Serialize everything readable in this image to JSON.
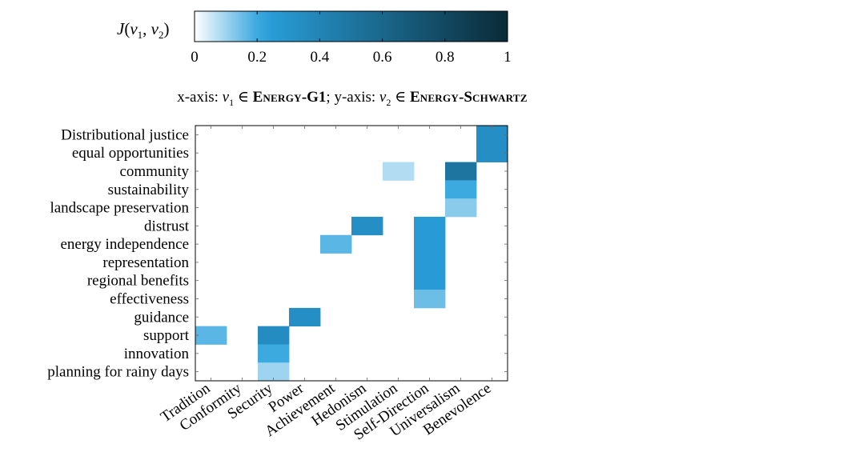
{
  "chart_data": {
    "type": "heatmap",
    "colorbar": {
      "label_symbol": "J",
      "label_args": "(v1, v2)",
      "range": [
        0,
        1
      ],
      "ticks": [
        "0",
        "0.2",
        "0.4",
        "0.6",
        "0.8",
        "1"
      ],
      "tick_values": [
        0,
        0.2,
        0.4,
        0.6,
        0.8,
        1
      ],
      "colors": [
        "#ffffff",
        "#29a0dc",
        "#0a2a36"
      ]
    },
    "subtitle": {
      "x_prefix": "x-axis: ",
      "x_var": "v",
      "x_sub": "1",
      "elem": " ∈ ",
      "x_set_first": "E",
      "x_set_rest": "nergy",
      "x_set_suffix": "-G1",
      "sep": "; y-axis: ",
      "y_var": "v",
      "y_sub": "2",
      "y_set_first": "E",
      "y_set_rest": "nergy",
      "y_set_dash": "-",
      "y_set_first2": "S",
      "y_set_rest2": "chwartz"
    },
    "x_categories": [
      "Tradition",
      "Conformity",
      "Security",
      "Power",
      "Achievement",
      "Hedonism",
      "Stimulation",
      "Self-Direction",
      "Universalism",
      "Benevolence"
    ],
    "y_categories": [
      "Distributional justice",
      "equal opportunities",
      "community",
      "sustainability",
      "landscape preservation",
      "distrust",
      "energy independence",
      "representation",
      "regional benefits",
      "effectiveness",
      "guidance",
      "support",
      "innovation",
      "planning for rainy days"
    ],
    "cells": [
      {
        "x": "Benevolence",
        "y": "Distributional justice",
        "value": 0.33
      },
      {
        "x": "Benevolence",
        "y": "equal opportunities",
        "value": 0.33
      },
      {
        "x": "Stimulation",
        "y": "community",
        "value": 0.08
      },
      {
        "x": "Universalism",
        "y": "community",
        "value": 0.5
      },
      {
        "x": "Universalism",
        "y": "sustainability",
        "value": 0.2
      },
      {
        "x": "Universalism",
        "y": "landscape preservation",
        "value": 0.12
      },
      {
        "x": "Hedonism",
        "y": "distrust",
        "value": 0.33
      },
      {
        "x": "Self-Direction",
        "y": "distrust",
        "value": 0.25
      },
      {
        "x": "Achievement",
        "y": "energy independence",
        "value": 0.17
      },
      {
        "x": "Self-Direction",
        "y": "energy independence",
        "value": 0.25
      },
      {
        "x": "Self-Direction",
        "y": "representation",
        "value": 0.25
      },
      {
        "x": "Self-Direction",
        "y": "regional benefits",
        "value": 0.25
      },
      {
        "x": "Self-Direction",
        "y": "effectiveness",
        "value": 0.15
      },
      {
        "x": "Power",
        "y": "guidance",
        "value": 0.33
      },
      {
        "x": "Tradition",
        "y": "support",
        "value": 0.17
      },
      {
        "x": "Security",
        "y": "support",
        "value": 0.35
      },
      {
        "x": "Security",
        "y": "innovation",
        "value": 0.2
      },
      {
        "x": "Security",
        "y": "planning for rainy days",
        "value": 0.1
      }
    ]
  }
}
